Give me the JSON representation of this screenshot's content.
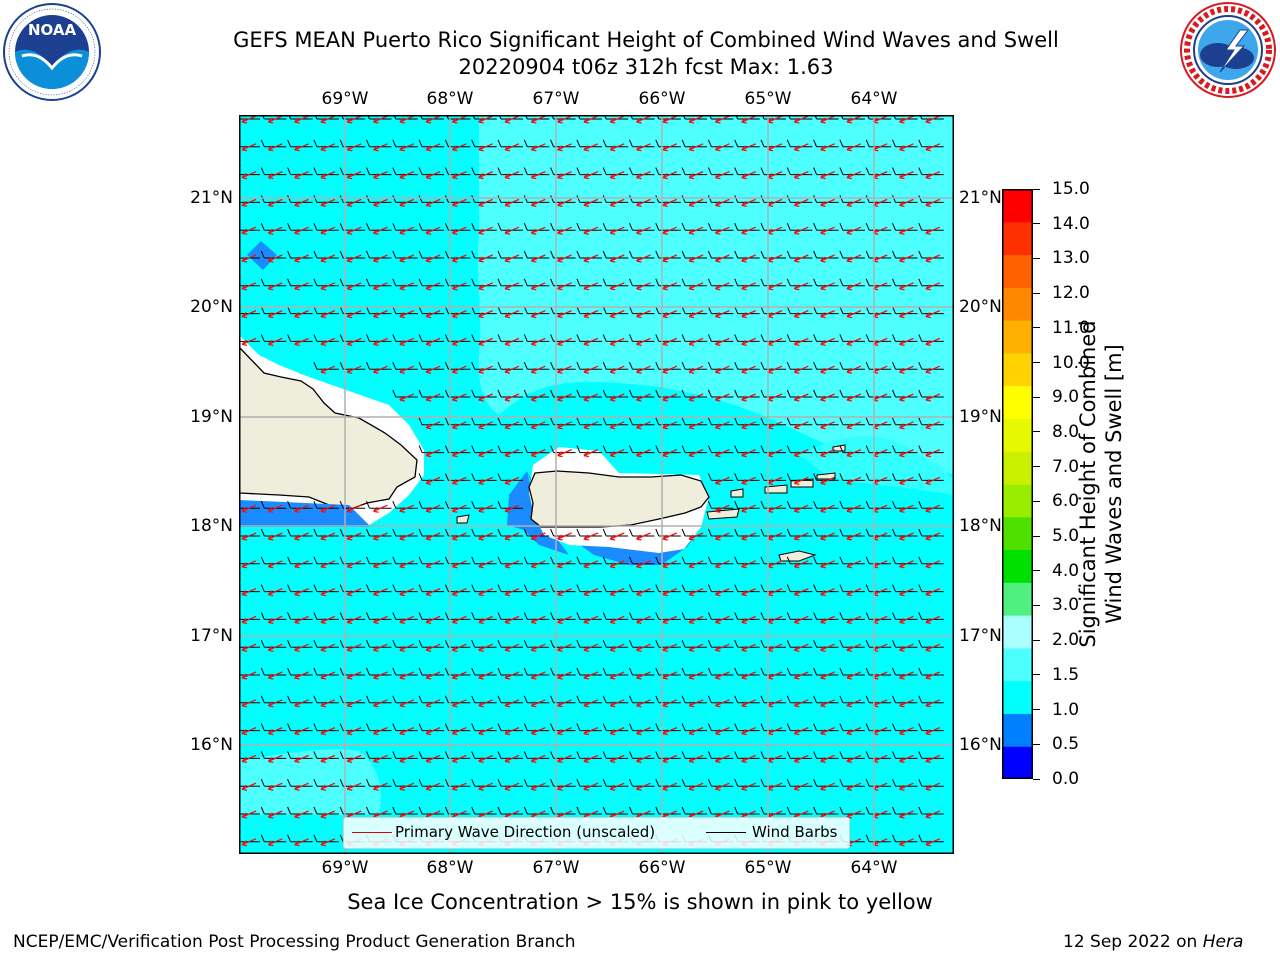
{
  "header": {
    "title_line1": "GEFS MEAN Puerto Rico Significant Height of Combined Wind Waves and Swell",
    "title_line2": "20220904 t06z 312h fcst   Max: 1.63"
  },
  "logos": {
    "noaa": {
      "text": "NOAA",
      "ring_text": "NATIONAL OCEANIC AND ATMOSPHERIC ADMINISTRATION · U.S. DEPARTMENT OF COMMERCE"
    },
    "nws": {
      "ring_text": "NATIONAL WEATHER SERVICE"
    }
  },
  "map": {
    "lon_ticks": [
      "69°W",
      "68°W",
      "67°W",
      "66°W",
      "65°W",
      "64°W"
    ],
    "lat_ticks": [
      "21°N",
      "20°N",
      "19°N",
      "18°N",
      "17°N",
      "16°N"
    ],
    "colors": {
      "sea_main": "#00ffff",
      "sea_light": "#4dffff",
      "sea_band": "#33ffff",
      "shallow": "#1a8cff",
      "land": "#efeedd",
      "no_data": "#ffffff"
    }
  },
  "legend": {
    "wave_direction": "Primary Wave Direction (unscaled)",
    "wind_barbs": "Wind Barbs"
  },
  "colorbar": {
    "label_line1": "Significant Height of Combined",
    "label_line2": "Wind Waves and Swell [m]",
    "ticks": [
      "15.0",
      "14.0",
      "13.0",
      "12.0",
      "11.0",
      "10.0",
      "9.0",
      "8.0",
      "7.0",
      "6.0",
      "5.0",
      "4.0",
      "3.0",
      "2.0",
      "1.5",
      "1.0",
      "0.5",
      "0.0"
    ],
    "colors": [
      "#0000ff",
      "#0080ff",
      "#00ffff",
      "#4dffff",
      "#aaffff",
      "#4ff080",
      "#00e000",
      "#50e000",
      "#99ee00",
      "#c8f000",
      "#e8f800",
      "#ffff00",
      "#ffd200",
      "#ffb000",
      "#ff8800",
      "#ff6000",
      "#ff3000",
      "#ff0000"
    ]
  },
  "caption": "Sea Ice Concentration > 15% is shown in pink to yellow",
  "footer": {
    "left": "NCEP/EMC/Verification Post Processing Product Generation Branch",
    "right_prefix": "12 Sep 2022 on ",
    "right_machine": "Hera"
  }
}
